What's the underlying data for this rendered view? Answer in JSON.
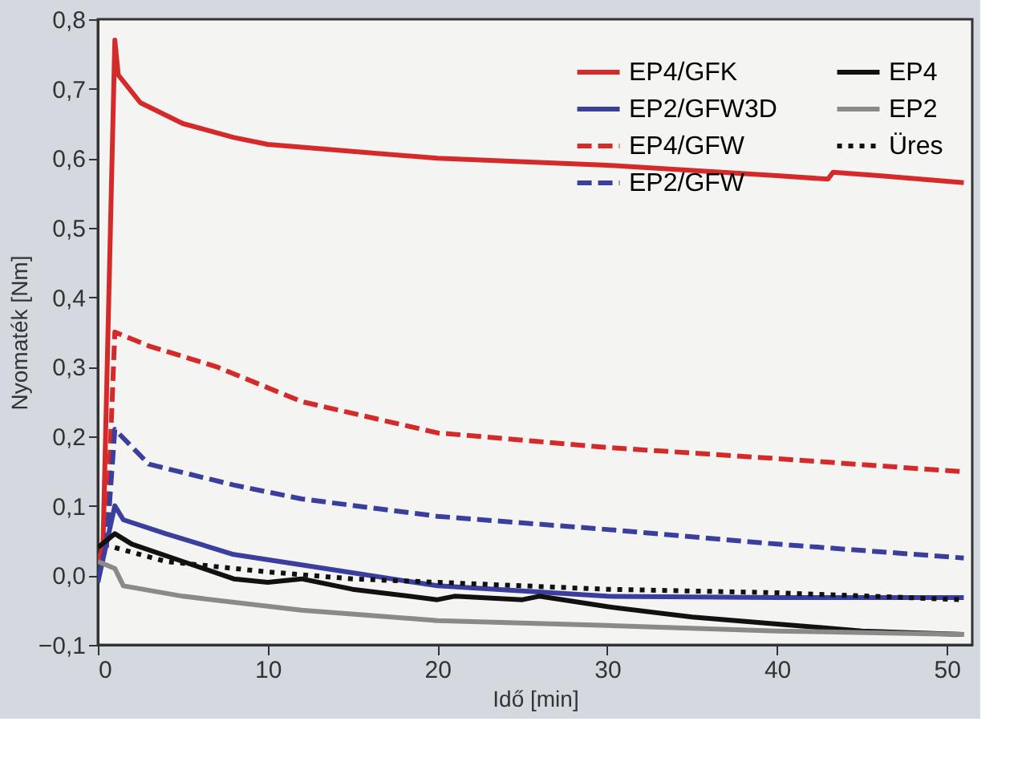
{
  "chart_data": {
    "type": "line",
    "xlabel": "Idő [min]",
    "ylabel": "Nyomaték [Nm]",
    "xlim": [
      0,
      51.5
    ],
    "xticks": [
      0,
      10,
      20,
      30,
      40,
      50
    ],
    "ylim": [
      -0.1,
      0.8
    ],
    "yticks": [
      {
        "value": -0.1,
        "label": "−0,1"
      },
      {
        "value": 0.0,
        "label": "0,0"
      },
      {
        "value": 0.1,
        "label": "0,1"
      },
      {
        "value": 0.2,
        "label": "0,2"
      },
      {
        "value": 0.3,
        "label": "0,3"
      },
      {
        "value": 0.4,
        "label": "0,4"
      },
      {
        "value": 0.5,
        "label": "0,5"
      },
      {
        "value": 0.6,
        "label": "0,6"
      },
      {
        "value": 0.7,
        "label": "0,7"
      },
      {
        "value": 0.8,
        "label": "0,8"
      }
    ],
    "grid": false,
    "legend": "top right",
    "marker": "none",
    "series": [
      {
        "name": "EP4/GFK",
        "color": "#d42a2a",
        "line_style": "solid",
        "x": [
          0,
          0.3,
          1,
          1.2,
          2.5,
          5,
          8,
          10,
          15,
          20,
          30,
          40,
          43,
          43.3,
          46,
          51
        ],
        "values": [
          0.02,
          0.04,
          0.77,
          0.72,
          0.68,
          0.65,
          0.63,
          0.62,
          0.61,
          0.6,
          0.59,
          0.575,
          0.57,
          0.58,
          0.575,
          0.565
        ]
      },
      {
        "name": "EP2/GFW3D",
        "color": "#3a3f9e",
        "line_style": "solid",
        "x": [
          0,
          1,
          1.5,
          4,
          8,
          12,
          20,
          30,
          40,
          51
        ],
        "values": [
          -0.01,
          0.1,
          0.08,
          0.06,
          0.03,
          0.015,
          -0.015,
          -0.03,
          -0.032,
          -0.032
        ]
      },
      {
        "name": "EP4/GFW",
        "color": "#d42a2a",
        "line_style": "dashed",
        "x": [
          0.5,
          1,
          3,
          7,
          12,
          20,
          30,
          40,
          51
        ],
        "values": [
          0.04,
          0.35,
          0.33,
          0.3,
          0.25,
          0.205,
          0.184,
          0.168,
          0.149
        ]
      },
      {
        "name": "EP2/GFW",
        "color": "#3a3f9e",
        "line_style": "dashed",
        "x": [
          0.5,
          1,
          3,
          8,
          12,
          20,
          30,
          40,
          51
        ],
        "values": [
          0.04,
          0.21,
          0.16,
          0.13,
          0.11,
          0.085,
          0.066,
          0.045,
          0.025
        ]
      },
      {
        "name": "EP4",
        "color": "#111111",
        "line_style": "solid",
        "x": [
          0,
          1,
          2,
          5,
          8,
          10,
          12,
          15,
          20,
          21,
          25,
          26,
          30,
          35,
          40,
          45,
          51
        ],
        "values": [
          0.04,
          0.06,
          0.045,
          0.02,
          -0.005,
          -0.01,
          -0.005,
          -0.02,
          -0.035,
          -0.03,
          -0.035,
          -0.03,
          -0.045,
          -0.06,
          -0.07,
          -0.08,
          -0.085
        ]
      },
      {
        "name": "EP2",
        "color": "#8a8a8a",
        "line_style": "solid",
        "x": [
          0,
          1,
          1.5,
          5,
          12,
          20,
          30,
          40,
          51
        ],
        "values": [
          0.02,
          0.01,
          -0.015,
          -0.03,
          -0.05,
          -0.065,
          -0.072,
          -0.08,
          -0.085
        ]
      },
      {
        "name": "Üres",
        "color": "#111111",
        "line_style": "dotted",
        "x": [
          1,
          4,
          10,
          15,
          25,
          30,
          40,
          51
        ],
        "values": [
          0.04,
          0.02,
          0.005,
          -0.005,
          -0.015,
          -0.02,
          -0.025,
          -0.035
        ]
      }
    ]
  }
}
